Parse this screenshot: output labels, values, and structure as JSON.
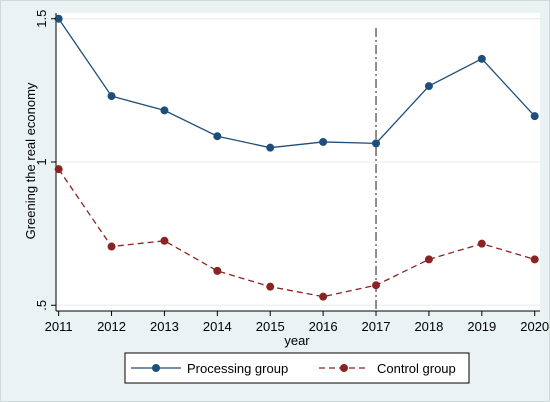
{
  "chart_data": {
    "type": "line",
    "title": "",
    "xlabel": "year",
    "ylabel": "Greening the real economy",
    "x": [
      2011,
      2012,
      2013,
      2014,
      2015,
      2016,
      2017,
      2018,
      2019,
      2020
    ],
    "x_tick_labels": [
      "2011",
      "2012",
      "2013",
      "2014",
      "2015",
      "2016",
      "2017",
      "2018",
      "2019",
      "2020"
    ],
    "y_ticks": [
      0.5,
      1,
      1.5
    ],
    "y_tick_labels": [
      ".5",
      "1",
      "1.5"
    ],
    "ylim": [
      0.48,
      1.52
    ],
    "xlim": [
      2010.95,
      2020.1
    ],
    "grid": "horizontal",
    "legend_position": "bottom",
    "vertical_reference_line": {
      "x": 2017,
      "style": "dashed"
    },
    "series": [
      {
        "name": "Processing group",
        "style": "solid",
        "color": "#1f4e79",
        "values": [
          1.5,
          1.23,
          1.18,
          1.09,
          1.05,
          1.07,
          1.065,
          1.265,
          1.36,
          1.16
        ]
      },
      {
        "name": "Control group",
        "style": "dashed",
        "color": "#8b2323",
        "values": [
          0.975,
          0.705,
          0.725,
          0.62,
          0.565,
          0.53,
          0.57,
          0.66,
          0.715,
          0.66
        ]
      }
    ]
  }
}
